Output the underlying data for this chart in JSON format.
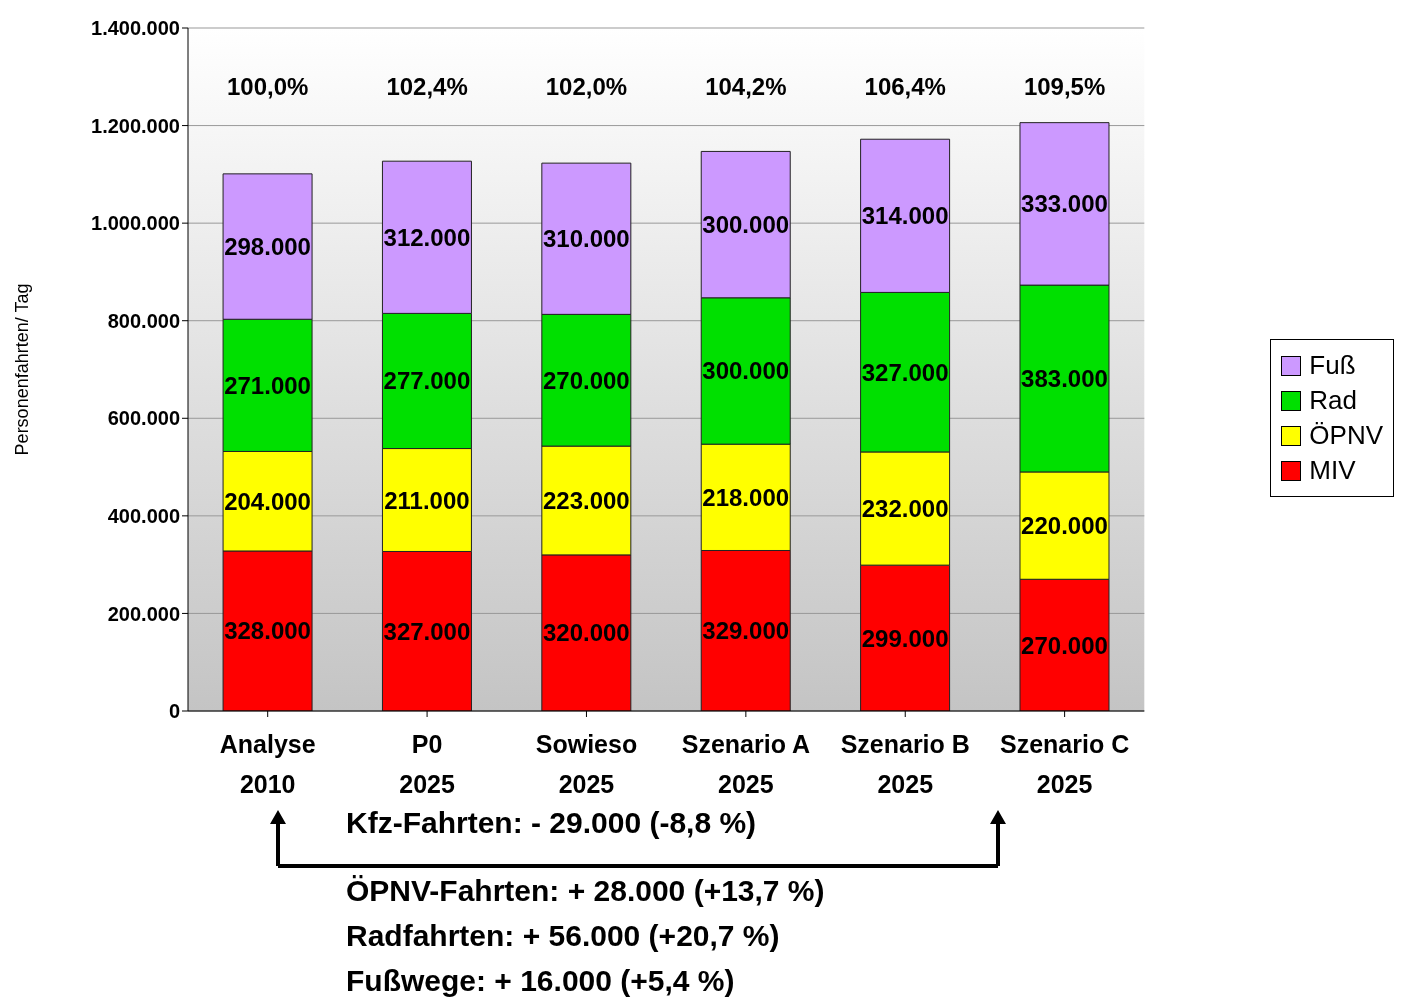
{
  "chart_data": {
    "type": "bar",
    "stacked": true,
    "ylabel": "Personenfahrten/ Tag",
    "categories": [
      "Analyse\n2010",
      "P0\n2025",
      "Sowieso\n2025",
      "Szenario A\n2025",
      "Szenario B\n2025",
      "Szenario C\n2025"
    ],
    "series": [
      {
        "name": "MIV",
        "color": "#ff0000",
        "values": [
          328000,
          327000,
          320000,
          329000,
          299000,
          270000
        ],
        "value_labels": [
          "328.000",
          "327.000",
          "320.000",
          "329.000",
          "299.000",
          "270.000"
        ]
      },
      {
        "name": "ÖPNV",
        "color": "#ffff00",
        "values": [
          204000,
          211000,
          223000,
          218000,
          232000,
          220000
        ],
        "value_labels": [
          "204.000",
          "211.000",
          "223.000",
          "218.000",
          "232.000",
          "220.000"
        ]
      },
      {
        "name": "Rad",
        "color": "#00e000",
        "values": [
          271000,
          277000,
          270000,
          300000,
          327000,
          383000
        ],
        "value_labels": [
          "271.000",
          "277.000",
          "270.000",
          "300.000",
          "327.000",
          "383.000"
        ]
      },
      {
        "name": "Fuß",
        "color": "#cc99ff",
        "values": [
          298000,
          312000,
          310000,
          300000,
          314000,
          333000
        ],
        "value_labels": [
          "298.000",
          "312.000",
          "310.000",
          "300.000",
          "314.000",
          "333.000"
        ]
      }
    ],
    "ylim": [
      0,
      1400000
    ],
    "yticks": [
      {
        "value": 0,
        "label": "0"
      },
      {
        "value": 200000,
        "label": "200.000"
      },
      {
        "value": 400000,
        "label": "400.000"
      },
      {
        "value": 600000,
        "label": "600.000"
      },
      {
        "value": 800000,
        "label": "800.000"
      },
      {
        "value": 1000000,
        "label": "1.000.000"
      },
      {
        "value": 1200000,
        "label": "1.200.000"
      },
      {
        "value": 1400000,
        "label": "1.400.000"
      }
    ],
    "grid": "y",
    "legend": "right",
    "annotations": [
      "100,0%",
      "102,4%",
      "102,0%",
      "104,2%",
      "106,4%",
      "109,5%",
      "Kfz-Fahrten:  - 29.000 (-8,8 %)",
      "ÖPNV-Fahrten:  + 28.000 (+13,7 %)",
      "Radfahrten:  + 56.000 (+20,7 %)",
      "Fußwege:  + 16.000 (+5,4 %)"
    ]
  }
}
